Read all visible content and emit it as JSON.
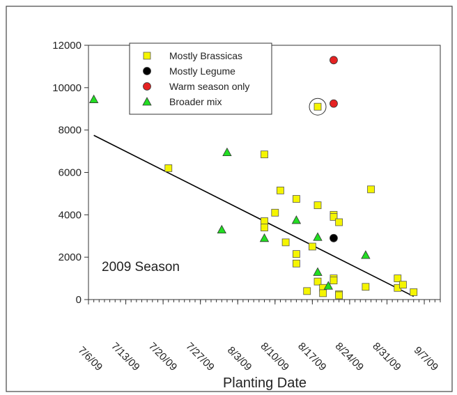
{
  "chart_data": {
    "type": "scatter",
    "xlabel": "Planting Date",
    "ylabel": "",
    "annotation": "2009 Season",
    "x_ticks": [
      "7/6/09",
      "7/13/09",
      "7/20/09",
      "7/27/09",
      "8/3/09",
      "8/10/09",
      "8/17/09",
      "8/24/09",
      "8/31/09",
      "9/7/09"
    ],
    "xlim": [
      "2009-07-06",
      "2009-09-10"
    ],
    "ylim": [
      0,
      12000
    ],
    "y_ticks": [
      0,
      2000,
      4000,
      6000,
      8000,
      10000,
      12000
    ],
    "grid": false,
    "legend_position": "top-center",
    "colors": {
      "brassicas": "#f5f500",
      "legume": "#000000",
      "warm": "#e52222",
      "broader": "#22dd22",
      "trendline": "#000000"
    },
    "series": [
      {
        "name": "Mostly Brassicas",
        "marker": "square",
        "color": "#f5f500",
        "points": [
          {
            "x": "2009-07-21",
            "y": 6200
          },
          {
            "x": "2009-08-08",
            "y": 6850
          },
          {
            "x": "2009-08-08",
            "y": 3700
          },
          {
            "x": "2009-08-08",
            "y": 3400
          },
          {
            "x": "2009-08-10",
            "y": 4100
          },
          {
            "x": "2009-08-11",
            "y": 5150
          },
          {
            "x": "2009-08-12",
            "y": 2700
          },
          {
            "x": "2009-08-14",
            "y": 4750
          },
          {
            "x": "2009-08-14",
            "y": 2150
          },
          {
            "x": "2009-08-14",
            "y": 1700
          },
          {
            "x": "2009-08-16",
            "y": 400
          },
          {
            "x": "2009-08-17",
            "y": 2500
          },
          {
            "x": "2009-08-18",
            "y": 9100
          },
          {
            "x": "2009-08-18",
            "y": 4450
          },
          {
            "x": "2009-08-18",
            "y": 850
          },
          {
            "x": "2009-08-19",
            "y": 550
          },
          {
            "x": "2009-08-19",
            "y": 300
          },
          {
            "x": "2009-08-21",
            "y": 4000
          },
          {
            "x": "2009-08-21",
            "y": 3900
          },
          {
            "x": "2009-08-21",
            "y": 1000
          },
          {
            "x": "2009-08-21",
            "y": 900
          },
          {
            "x": "2009-08-22",
            "y": 3650
          },
          {
            "x": "2009-08-22",
            "y": 250
          },
          {
            "x": "2009-08-22",
            "y": 200
          },
          {
            "x": "2009-08-27",
            "y": 600
          },
          {
            "x": "2009-08-28",
            "y": 5200
          },
          {
            "x": "2009-09-02",
            "y": 1000
          },
          {
            "x": "2009-09-02",
            "y": 550
          },
          {
            "x": "2009-09-03",
            "y": 700
          },
          {
            "x": "2009-09-05",
            "y": 350
          }
        ]
      },
      {
        "name": "Mostly Legume",
        "marker": "circle",
        "color": "#000000",
        "points": [
          {
            "x": "2009-08-21",
            "y": 2900
          }
        ]
      },
      {
        "name": "Warm season only",
        "marker": "circle",
        "color": "#e52222",
        "points": [
          {
            "x": "2009-08-21",
            "y": 11300
          },
          {
            "x": "2009-08-21",
            "y": 9250
          }
        ]
      },
      {
        "name": "Broader mix",
        "marker": "triangle",
        "color": "#22dd22",
        "points": [
          {
            "x": "2009-07-07",
            "y": 9450
          },
          {
            "x": "2009-07-31",
            "y": 3300
          },
          {
            "x": "2009-08-01",
            "y": 6950
          },
          {
            "x": "2009-08-08",
            "y": 2900
          },
          {
            "x": "2009-08-14",
            "y": 3750
          },
          {
            "x": "2009-08-18",
            "y": 2950
          },
          {
            "x": "2009-08-18",
            "y": 1300
          },
          {
            "x": "2009-08-20",
            "y": 650
          },
          {
            "x": "2009-08-27",
            "y": 2100
          }
        ]
      }
    ],
    "trendline": {
      "x": [
        "2009-07-07",
        "2009-09-05"
      ],
      "y": [
        7750,
        150
      ]
    },
    "highlighted_point": {
      "x": "2009-08-18",
      "y": 9100
    }
  }
}
